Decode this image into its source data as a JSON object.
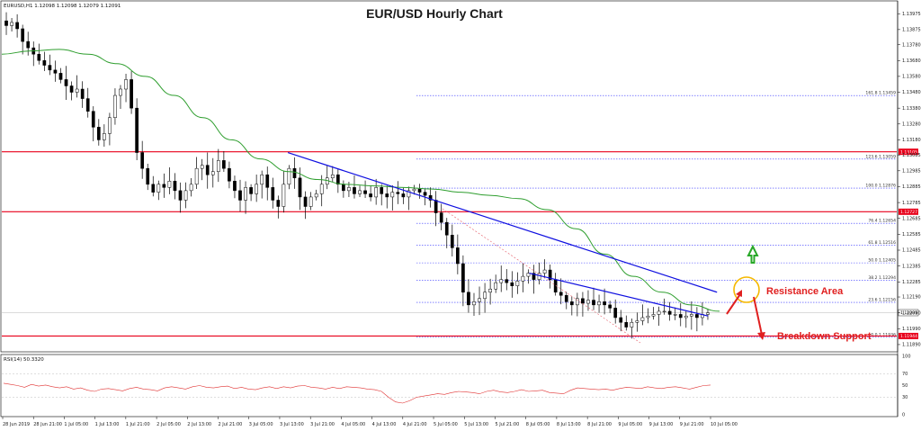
{
  "header": {
    "symbol_line": "EURUSD,H1  1.12098 1.12098 1.12079 1.12091",
    "rsi_label": "RSI(14) 50.3320"
  },
  "chart_data": {
    "type": "candlestick",
    "title": "EUR/USD Hourly Chart",
    "symbol": "EURUSD",
    "timeframe": "H1",
    "ohlc_readout": {
      "open": 1.12098,
      "high": 1.12098,
      "low": 1.12079,
      "close": 1.12091
    },
    "ylim": [
      1.1185,
      1.1405
    ],
    "y_ticks": [
      "1.13975",
      "1.13875",
      "1.13780",
      "1.13680",
      "1.13580",
      "1.13480",
      "1.13380",
      "1.13280",
      "1.13180",
      "1.13085",
      "1.12985",
      "1.12885",
      "1.12785",
      "1.12685",
      "1.12585",
      "1.12485",
      "1.12385",
      "1.12285",
      "1.12190",
      "1.12090",
      "1.11990",
      "1.11890"
    ],
    "x_ticks": [
      "28 Jun 2019",
      "28 Jun 21:00",
      "1 Jul 05:00",
      "1 Jul 13:00",
      "1 Jul 21:00",
      "2 Jul 05:00",
      "2 Jul 13:00",
      "2 Jul 21:00",
      "3 Jul 05:00",
      "3 Jul 13:00",
      "3 Jul 21:00",
      "4 Jul 05:00",
      "4 Jul 13:00",
      "4 Jul 21:00",
      "5 Jul 05:00",
      "5 Jul 13:00",
      "5 Jul 21:00",
      "8 Jul 05:00",
      "8 Jul 13:00",
      "8 Jul 21:00",
      "9 Jul 05:00",
      "9 Jul 13:00",
      "9 Jul 21:00",
      "10 Jul 05:00"
    ],
    "close_path": [
      1.139,
      1.1392,
      1.1388,
      1.138,
      1.1376,
      1.1372,
      1.1368,
      1.1365,
      1.1362,
      1.136,
      1.1356,
      1.1352,
      1.1348,
      1.135,
      1.1344,
      1.1336,
      1.1326,
      1.1318,
      1.1322,
      1.1332,
      1.1346,
      1.135,
      1.1356,
      1.1338,
      1.131,
      1.13,
      1.129,
      1.1285,
      1.129,
      1.1288,
      1.1292,
      1.1286,
      1.128,
      1.1286,
      1.129,
      1.13,
      1.1302,
      1.1296,
      1.1298,
      1.1305,
      1.13,
      1.1292,
      1.1286,
      1.128,
      1.1288,
      1.1284,
      1.129,
      1.1296,
      1.1288,
      1.128,
      1.1276,
      1.129,
      1.13,
      1.1294,
      1.1282,
      1.1276,
      1.1282,
      1.1284,
      1.129,
      1.1294,
      1.1296,
      1.129,
      1.1286,
      1.1288,
      1.1284,
      1.1286,
      1.1284,
      1.1282,
      1.1288,
      1.1284,
      1.1282,
      1.1285,
      1.1284,
      1.1282,
      1.1286,
      1.1287,
      1.1285,
      1.1283,
      1.128,
      1.1272,
      1.1266,
      1.1258,
      1.125,
      1.124,
      1.1222,
      1.1214,
      1.1216,
      1.1218,
      1.1222,
      1.1224,
      1.1228,
      1.123,
      1.1228,
      1.1226,
      1.1229,
      1.1232,
      1.1234,
      1.123,
      1.1234,
      1.1236,
      1.123,
      1.1222,
      1.122,
      1.1216,
      1.1214,
      1.1218,
      1.1215,
      1.1217,
      1.1214,
      1.1216,
      1.1214,
      1.1212,
      1.1206,
      1.1203,
      1.12,
      1.1203,
      1.1204,
      1.1206,
      1.1207,
      1.1208,
      1.121,
      1.121,
      1.1208,
      1.1208,
      1.1206,
      1.1207,
      1.1208,
      1.1206,
      1.1208,
      1.1209
    ],
    "ma_path": [
      1.1372,
      1.1374,
      1.1375,
      1.1372,
      1.1366,
      1.1358,
      1.1346,
      1.1332,
      1.1318,
      1.1306,
      1.1298,
      1.1293,
      1.129,
      1.1289,
      1.1288,
      1.1287,
      1.1285,
      1.1283,
      1.1281,
      1.1274,
      1.1262,
      1.1246,
      1.1232,
      1.1222,
      1.1214,
      1.121
    ],
    "horizontal_levels": [
      {
        "name": "resistance-level",
        "value": 1.13105,
        "label": "1.13105"
      },
      {
        "name": "support-level-mid",
        "value": 1.12727,
        "label": "1.12727"
      },
      {
        "name": "breakdown-support-level",
        "value": 1.11944,
        "label": "1.11944"
      },
      {
        "name": "current-price-level",
        "value": 1.12091,
        "label": "1.12091"
      }
    ],
    "fibonacci_levels": [
      {
        "label": "161.8 1.13459",
        "value": 1.13459
      },
      {
        "label": "123.6 1.13059",
        "value": 1.13059
      },
      {
        "label": "100.0 1.12876",
        "value": 1.12876
      },
      {
        "label": "76.4 1.12654",
        "value": 1.12654
      },
      {
        "label": "61.8 1.12516",
        "value": 1.12516
      },
      {
        "label": "50.0 1.12405",
        "value": 1.12405
      },
      {
        "label": "38.2 1.12294",
        "value": 1.12294
      },
      {
        "label": "23.6 1.12156",
        "value": 1.12156
      },
      {
        "label": "0.0 1.11936",
        "value": 1.11936
      }
    ],
    "trend_lines": [
      {
        "name": "major-bearish-trend-line",
        "from": [
          0.32,
          1.131
        ],
        "to": [
          0.8,
          1.1222
        ]
      },
      {
        "name": "minor-bearish-trend-line",
        "from": [
          0.59,
          1.1234
        ],
        "to": [
          0.79,
          1.1207
        ]
      }
    ],
    "annotations": [
      {
        "text": "Resistance Area",
        "color": "#e02020"
      },
      {
        "text": "Breakdown Support",
        "color": "#e02020"
      }
    ],
    "rsi": {
      "period": 14,
      "value": 50.332,
      "ylim": [
        0,
        100
      ],
      "y_ticks": [
        "100",
        "70",
        "50",
        "30",
        "0"
      ],
      "values": [
        54,
        52,
        50,
        47,
        52,
        49,
        51,
        48,
        46,
        48,
        44,
        46,
        42,
        40,
        44,
        45,
        43,
        41,
        45,
        47,
        44,
        43,
        41,
        46,
        48,
        46,
        44,
        48,
        50,
        47,
        46,
        48,
        49,
        45,
        47,
        44,
        43,
        46,
        48,
        45,
        48,
        46,
        49,
        50,
        47,
        46,
        44,
        47,
        45,
        48,
        47,
        46,
        44,
        43,
        40,
        30,
        22,
        20,
        24,
        30,
        32,
        34,
        36,
        35,
        38,
        40,
        39,
        38,
        36,
        40,
        42,
        39,
        38,
        40,
        43,
        40,
        41,
        42,
        38,
        37,
        36,
        42,
        46,
        45,
        44,
        43,
        44,
        42,
        45,
        47,
        46,
        45,
        48,
        46,
        45,
        47,
        48,
        46,
        44,
        47,
        50,
        51
      ]
    },
    "colors": {
      "candle": "#000000",
      "moving_average": "#2e9e2e",
      "trend_line": "#1010e0",
      "levels": "#e8001a",
      "fibonacci": "#3a3aff",
      "rsi": "#e03030",
      "annotation": "#e02020",
      "circle": "#f5b800",
      "up_arrow": "#28a828"
    }
  }
}
